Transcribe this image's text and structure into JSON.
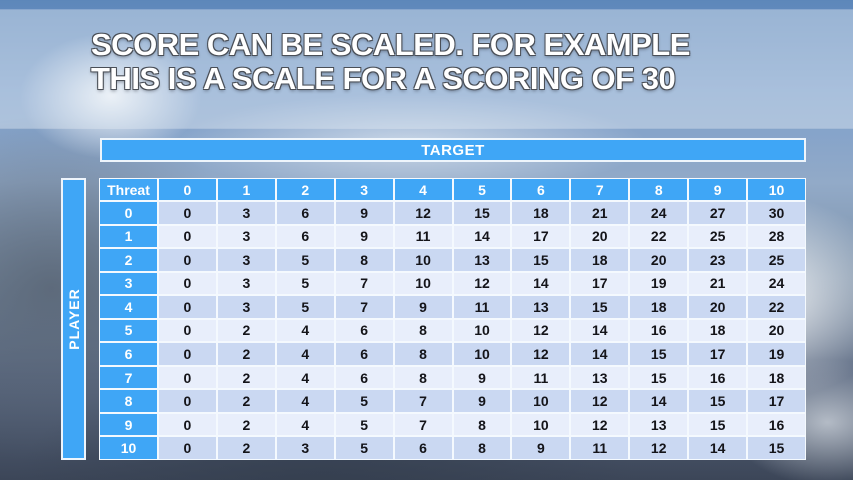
{
  "title": {
    "line1": "SCORE CAN BE SCALED. FOR EXAMPLE",
    "line2": "THIS IS A SCALE FOR A SCORING OF 30"
  },
  "table": {
    "target_label": "TARGET",
    "player_label": "PLAYER",
    "corner_label": "Threat",
    "target_values": [
      "0",
      "1",
      "2",
      "3",
      "4",
      "5",
      "6",
      "7",
      "8",
      "9",
      "10"
    ],
    "rows": [
      {
        "threat": "0",
        "values": [
          "0",
          "3",
          "6",
          "9",
          "12",
          "15",
          "18",
          "21",
          "24",
          "27",
          "30"
        ]
      },
      {
        "threat": "1",
        "values": [
          "0",
          "3",
          "6",
          "9",
          "11",
          "14",
          "17",
          "20",
          "22",
          "25",
          "28"
        ]
      },
      {
        "threat": "2",
        "values": [
          "0",
          "3",
          "5",
          "8",
          "10",
          "13",
          "15",
          "18",
          "20",
          "23",
          "25"
        ]
      },
      {
        "threat": "3",
        "values": [
          "0",
          "3",
          "5",
          "7",
          "10",
          "12",
          "14",
          "17",
          "19",
          "21",
          "24"
        ]
      },
      {
        "threat": "4",
        "values": [
          "0",
          "3",
          "5",
          "7",
          "9",
          "11",
          "13",
          "15",
          "18",
          "20",
          "22"
        ]
      },
      {
        "threat": "5",
        "values": [
          "0",
          "2",
          "4",
          "6",
          "8",
          "10",
          "12",
          "14",
          "16",
          "18",
          "20"
        ]
      },
      {
        "threat": "6",
        "values": [
          "0",
          "2",
          "4",
          "6",
          "8",
          "10",
          "12",
          "14",
          "15",
          "17",
          "19"
        ]
      },
      {
        "threat": "7",
        "values": [
          "0",
          "2",
          "4",
          "6",
          "8",
          "9",
          "11",
          "13",
          "15",
          "16",
          "18"
        ]
      },
      {
        "threat": "8",
        "values": [
          "0",
          "2",
          "4",
          "5",
          "7",
          "9",
          "10",
          "12",
          "14",
          "15",
          "17"
        ]
      },
      {
        "threat": "9",
        "values": [
          "0",
          "2",
          "4",
          "5",
          "7",
          "8",
          "10",
          "12",
          "13",
          "15",
          "16"
        ]
      },
      {
        "threat": "10",
        "values": [
          "0",
          "2",
          "3",
          "5",
          "6",
          "8",
          "9",
          "11",
          "12",
          "14",
          "15"
        ]
      }
    ]
  },
  "colors": {
    "header_blue": "#3fa6f6",
    "row_even": "#cad8f2",
    "row_odd": "#e8eefb",
    "grid_line": "#f4f9fe",
    "data_text": "#141419"
  }
}
